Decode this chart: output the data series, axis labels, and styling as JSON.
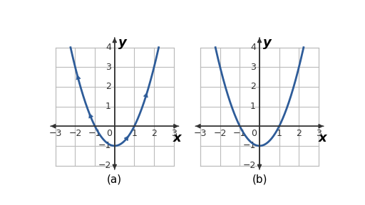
{
  "xlim": [
    -3.5,
    3.5
  ],
  "ylim": [
    -2.5,
    4.8
  ],
  "grid_xlim": [
    -3,
    3
  ],
  "grid_ylim": [
    -2,
    4
  ],
  "xticks": [
    -3,
    -2,
    -1,
    0,
    1,
    2,
    3
  ],
  "yticks": [
    -2,
    -1,
    0,
    1,
    2,
    3,
    4
  ],
  "curve_color": "#2e5c99",
  "curve_lw": 2.0,
  "background_color": "#ffffff",
  "grid_color": "#bbbbbb",
  "grid_lw": 0.8,
  "axis_color": "#333333",
  "label_a": "(a)",
  "label_b": "(b)",
  "label_fontsize": 11,
  "tick_fontsize": 9,
  "axis_label_fontsize": 13,
  "arrow_positions_a": [
    {
      "t": -1.75,
      "dt": -0.18
    },
    {
      "t": -1.15,
      "dt": -0.18
    },
    {
      "t": 0.6,
      "dt": 0.18
    },
    {
      "t": 1.5,
      "dt": 0.18
    }
  ]
}
